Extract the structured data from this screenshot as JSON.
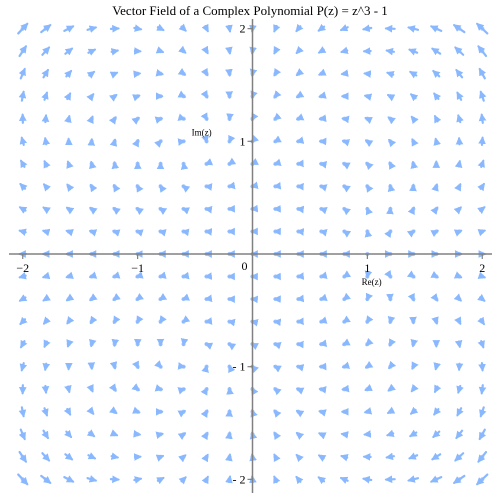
{
  "chart_data": {
    "type": "vector-field",
    "title": "Vector Field of a Complex Polynomial P(z) = z^3 - 1",
    "xlabel": "Re(z)",
    "ylabel": "Im(z)",
    "xlim": [
      -2.05,
      2.05
    ],
    "ylim": [
      -2.05,
      2.05
    ],
    "x_ticks": [
      {
        "value": -2,
        "label": "−2"
      },
      {
        "value": -1,
        "label": "−1"
      },
      {
        "value": 1,
        "label": "1"
      },
      {
        "value": 2,
        "label": "2"
      }
    ],
    "y_ticks": [
      {
        "value": 2,
        "label": "2"
      },
      {
        "value": 1,
        "label": "1"
      },
      {
        "value": -1,
        "label": "- 1"
      },
      {
        "value": -2,
        "label": "- 2"
      }
    ],
    "origin_label": "0",
    "grid_range": [
      -2,
      2
    ],
    "grid_count": 21,
    "arrow_color": "#8ab8ff",
    "dot_color": "#a9c8ff",
    "axis_color": "#808080",
    "grid": false,
    "legend": "none"
  }
}
